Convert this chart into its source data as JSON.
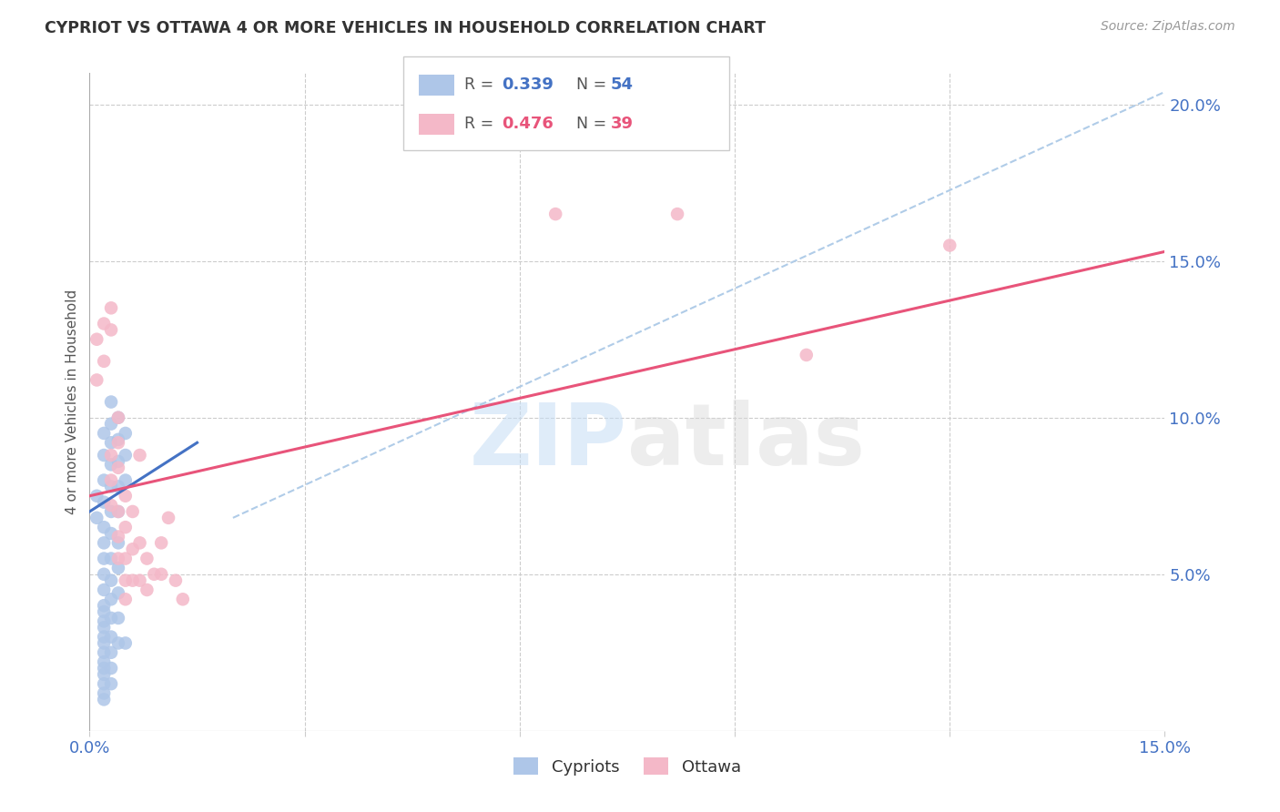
{
  "title": "CYPRIOT VS OTTAWA 4 OR MORE VEHICLES IN HOUSEHOLD CORRELATION CHART",
  "source": "Source: ZipAtlas.com",
  "ylabel": "4 or more Vehicles in Household",
  "xlim": [
    0.0,
    0.15
  ],
  "ylim": [
    0.0,
    0.21
  ],
  "xtick_positions": [
    0.0,
    0.03,
    0.06,
    0.09,
    0.12,
    0.15
  ],
  "xtick_labels": [
    "0.0%",
    "",
    "",
    "",
    "",
    "15.0%"
  ],
  "ytick_positions": [
    0.05,
    0.1,
    0.15,
    0.2
  ],
  "ytick_labels": [
    "5.0%",
    "10.0%",
    "15.0%",
    "20.0%"
  ],
  "background_color": "#ffffff",
  "grid_color": "#cccccc",
  "watermark": "ZIPatlas",
  "cypriot_color": "#aec6e8",
  "ottawa_color": "#f4b8c8",
  "cypriot_line_color": "#4472c4",
  "ottawa_line_color": "#e8547a",
  "dashed_line_color": "#b0cce8",
  "cypriot_points": [
    [
      0.001,
      0.075
    ],
    [
      0.001,
      0.068
    ],
    [
      0.002,
      0.095
    ],
    [
      0.002,
      0.088
    ],
    [
      0.002,
      0.08
    ],
    [
      0.002,
      0.073
    ],
    [
      0.002,
      0.065
    ],
    [
      0.002,
      0.06
    ],
    [
      0.002,
      0.055
    ],
    [
      0.002,
      0.05
    ],
    [
      0.002,
      0.045
    ],
    [
      0.002,
      0.04
    ],
    [
      0.002,
      0.038
    ],
    [
      0.002,
      0.035
    ],
    [
      0.002,
      0.033
    ],
    [
      0.002,
      0.03
    ],
    [
      0.002,
      0.028
    ],
    [
      0.002,
      0.025
    ],
    [
      0.002,
      0.022
    ],
    [
      0.002,
      0.02
    ],
    [
      0.002,
      0.018
    ],
    [
      0.002,
      0.015
    ],
    [
      0.002,
      0.012
    ],
    [
      0.002,
      0.01
    ],
    [
      0.003,
      0.105
    ],
    [
      0.003,
      0.098
    ],
    [
      0.003,
      0.092
    ],
    [
      0.003,
      0.085
    ],
    [
      0.003,
      0.078
    ],
    [
      0.003,
      0.07
    ],
    [
      0.003,
      0.063
    ],
    [
      0.003,
      0.055
    ],
    [
      0.003,
      0.048
    ],
    [
      0.003,
      0.042
    ],
    [
      0.003,
      0.036
    ],
    [
      0.003,
      0.03
    ],
    [
      0.003,
      0.025
    ],
    [
      0.003,
      0.02
    ],
    [
      0.003,
      0.015
    ],
    [
      0.004,
      0.1
    ],
    [
      0.004,
      0.093
    ],
    [
      0.004,
      0.086
    ],
    [
      0.004,
      0.078
    ],
    [
      0.004,
      0.07
    ],
    [
      0.004,
      0.06
    ],
    [
      0.004,
      0.052
    ],
    [
      0.004,
      0.044
    ],
    [
      0.004,
      0.036
    ],
    [
      0.004,
      0.028
    ],
    [
      0.005,
      0.095
    ],
    [
      0.005,
      0.088
    ],
    [
      0.005,
      0.08
    ],
    [
      0.005,
      0.028
    ]
  ],
  "ottawa_points": [
    [
      0.001,
      0.125
    ],
    [
      0.001,
      0.112
    ],
    [
      0.002,
      0.13
    ],
    [
      0.002,
      0.118
    ],
    [
      0.003,
      0.135
    ],
    [
      0.003,
      0.128
    ],
    [
      0.003,
      0.088
    ],
    [
      0.003,
      0.08
    ],
    [
      0.003,
      0.072
    ],
    [
      0.004,
      0.1
    ],
    [
      0.004,
      0.092
    ],
    [
      0.004,
      0.084
    ],
    [
      0.004,
      0.07
    ],
    [
      0.004,
      0.062
    ],
    [
      0.004,
      0.055
    ],
    [
      0.005,
      0.075
    ],
    [
      0.005,
      0.065
    ],
    [
      0.005,
      0.055
    ],
    [
      0.005,
      0.048
    ],
    [
      0.005,
      0.042
    ],
    [
      0.006,
      0.07
    ],
    [
      0.006,
      0.058
    ],
    [
      0.006,
      0.048
    ],
    [
      0.007,
      0.088
    ],
    [
      0.007,
      0.06
    ],
    [
      0.007,
      0.048
    ],
    [
      0.008,
      0.055
    ],
    [
      0.008,
      0.045
    ],
    [
      0.009,
      0.05
    ],
    [
      0.01,
      0.06
    ],
    [
      0.01,
      0.05
    ],
    [
      0.011,
      0.068
    ],
    [
      0.012,
      0.048
    ],
    [
      0.013,
      0.042
    ],
    [
      0.065,
      0.165
    ],
    [
      0.082,
      0.165
    ],
    [
      0.1,
      0.12
    ],
    [
      0.12,
      0.155
    ]
  ],
  "cypriot_trendline": [
    [
      0.0,
      0.07
    ],
    [
      0.015,
      0.092
    ]
  ],
  "ottawa_trendline": [
    [
      0.0,
      0.075
    ],
    [
      0.15,
      0.153
    ]
  ],
  "dashed_trendline": [
    [
      0.02,
      0.068
    ],
    [
      0.15,
      0.204
    ]
  ]
}
